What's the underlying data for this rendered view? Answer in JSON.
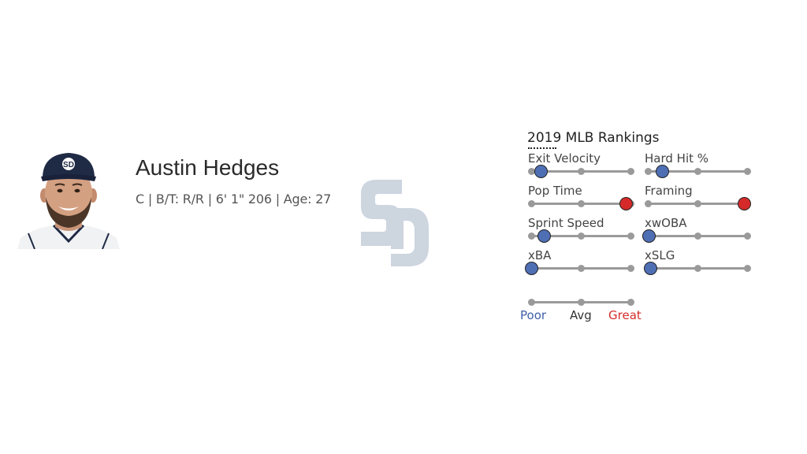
{
  "player": {
    "name": "Austin Hedges",
    "info": "C | B/T: R/R | 6' 1\" 206 | Age: 27"
  },
  "team_logo": {
    "icon": "padres-sd-logo-icon",
    "color": "#cdd5df"
  },
  "rankings": {
    "title": "2019 MLB Rankings",
    "metrics": [
      {
        "label": "Exit Velocity",
        "level": 0.1
      },
      {
        "label": "Hard Hit %",
        "level": 0.15
      },
      {
        "label": "Pop Time",
        "level": 0.96
      },
      {
        "label": "Framing",
        "level": 0.97
      },
      {
        "label": "Sprint Speed",
        "level": 0.13
      },
      {
        "label": "xwOBA",
        "level": 0.01
      },
      {
        "label": "xBA",
        "level": 0.0
      },
      {
        "label": "xSLG",
        "level": 0.03
      }
    ],
    "legend": {
      "poor": "Poor",
      "avg": "Avg",
      "great": "Great"
    }
  },
  "colors": {
    "poor": "#3f5fa8",
    "avg": "#333333",
    "great": "#d62d2d",
    "poor_knob": "#4f6fb5",
    "great_knob": "#d62a2a"
  }
}
